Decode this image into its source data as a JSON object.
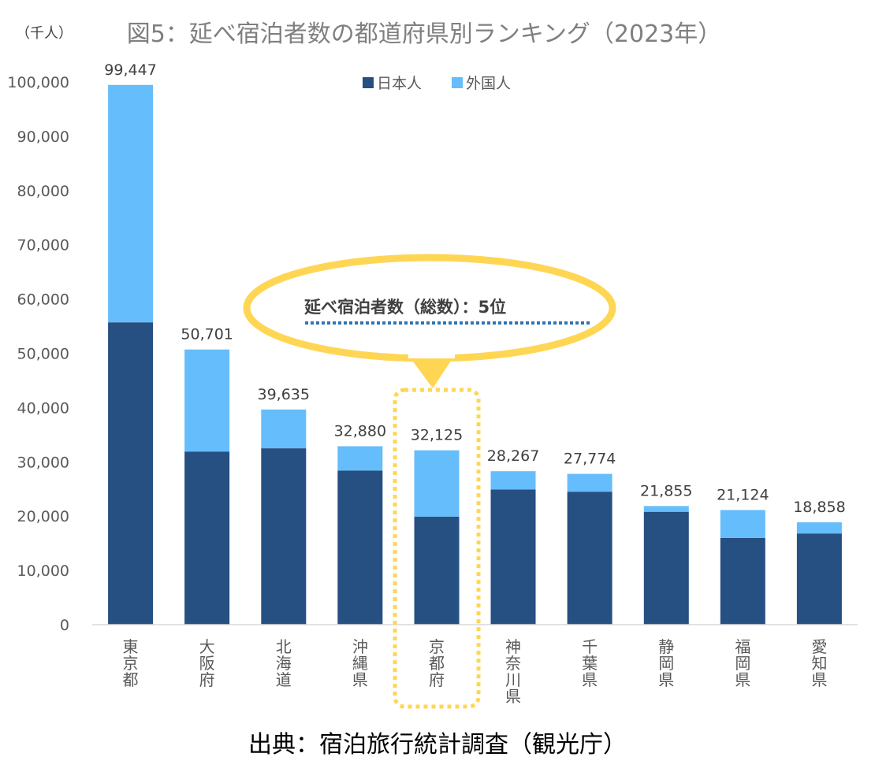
{
  "chart_data": {
    "type": "bar",
    "stacked": true,
    "title": "図5：延べ宿泊者数の都道府県別ランキング（2023年）",
    "unit_label": "（千人）",
    "xlabel": "",
    "ylabel": "",
    "ylim": [
      0,
      100000
    ],
    "yticks": [
      0,
      10000,
      20000,
      30000,
      40000,
      50000,
      60000,
      70000,
      80000,
      90000,
      100000
    ],
    "ytick_labels": [
      "0",
      "10,000",
      "20,000",
      "30,000",
      "40,000",
      "50,000",
      "60,000",
      "70,000",
      "80,000",
      "90,000",
      "100,000"
    ],
    "grid": false,
    "legend_position": "top-center",
    "categories": [
      "東京都",
      "大阪府",
      "北海道",
      "沖縄県",
      "京都府",
      "神奈川県",
      "千葉県",
      "静岡県",
      "福岡県",
      "愛知県"
    ],
    "series": [
      {
        "name": "日本人",
        "color": "#264f82",
        "values": [
          55700,
          31900,
          32500,
          28400,
          19900,
          24900,
          24500,
          20800,
          16000,
          16800
        ]
      },
      {
        "name": "外国人",
        "color": "#66bdfb",
        "values": [
          43747,
          18801,
          7135,
          4480,
          12225,
          3367,
          3274,
          1055,
          5124,
          2058
        ]
      }
    ],
    "totals": [
      99447,
      50701,
      39635,
      32880,
      32125,
      28267,
      27774,
      21855,
      21124,
      18858
    ],
    "total_labels": [
      "99,447",
      "50,701",
      "39,635",
      "32,880",
      "32,125",
      "28,267",
      "27,774",
      "21,855",
      "21,124",
      "18,858"
    ],
    "highlight_index": 4,
    "callout": "延べ宿泊者数（総数）：5位",
    "callout_color": "#ffd654",
    "source": "出典：宿泊旅行統計調査（観光庁）"
  }
}
